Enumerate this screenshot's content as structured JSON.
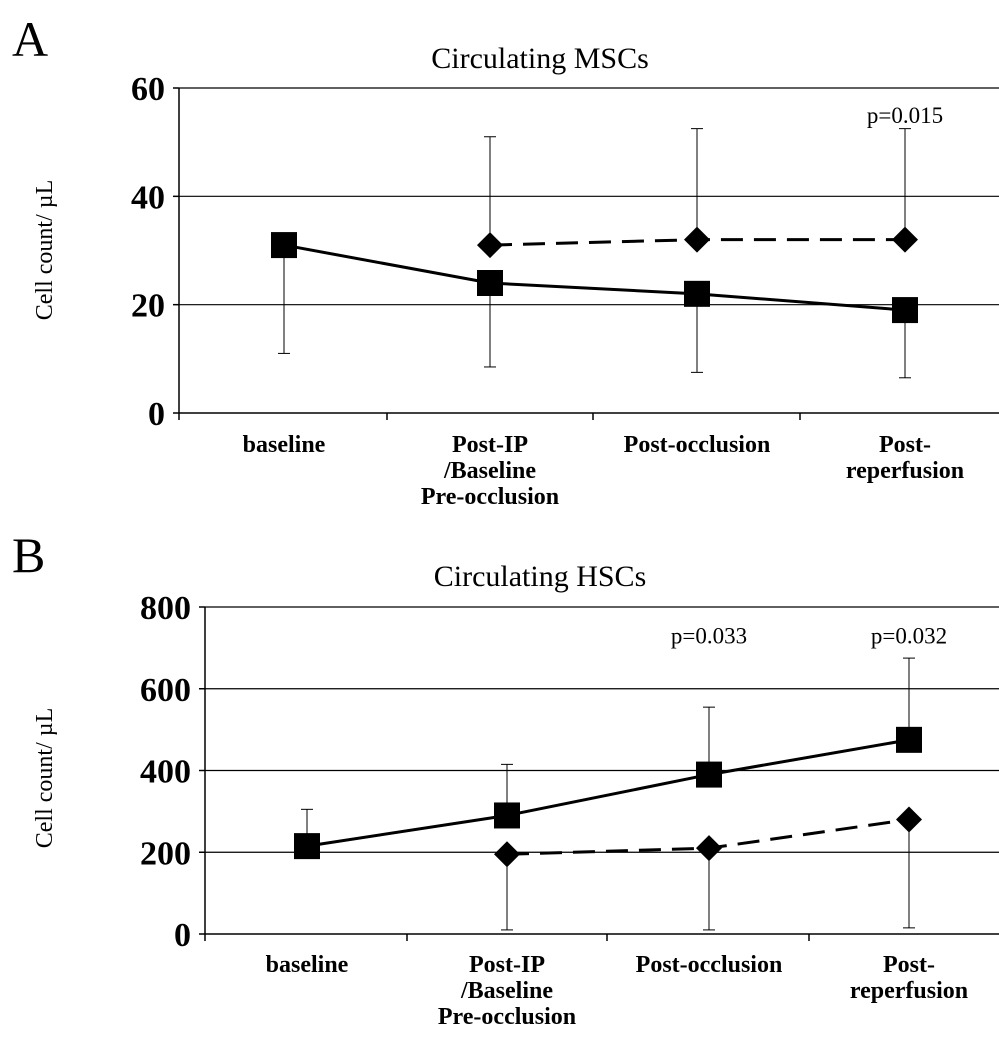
{
  "chart_data": [
    {
      "panel": "A",
      "type": "line",
      "title": "Circulating MSCs",
      "ylabel": "Cell count/ µL",
      "xlabel": "",
      "ylim": [
        0,
        60
      ],
      "yticks": [
        "0",
        "20",
        "40",
        "60"
      ],
      "categories": [
        [
          "baseline"
        ],
        [
          "Post-IP",
          "/Baseline",
          "Pre-occlusion"
        ],
        [
          "Post-occlusion"
        ],
        [
          "Post-",
          "reperfusion"
        ]
      ],
      "grid": true,
      "series": [
        {
          "marker": "square",
          "line": "solid",
          "values": [
            31,
            24,
            22,
            19
          ],
          "errors": [
            [
              11,
              31
            ],
            [
              8.5,
              24
            ],
            [
              7.5,
              22
            ],
            [
              6.5,
              19
            ]
          ]
        },
        {
          "marker": "diamond",
          "line": "dashed",
          "values": [
            null,
            31,
            32,
            32
          ],
          "errors": [
            null,
            [
              31,
              51
            ],
            [
              32,
              52.5
            ],
            [
              32,
              52.5
            ]
          ]
        }
      ],
      "annotations": [
        {
          "category_index": 3,
          "value": 55,
          "text": "p=0.015"
        }
      ]
    },
    {
      "panel": "B",
      "type": "line",
      "title": "Circulating HSCs",
      "ylabel": "Cell count/ µL",
      "xlabel": "",
      "ylim": [
        0,
        800
      ],
      "yticks": [
        "0",
        "200",
        "400",
        "600",
        "800"
      ],
      "categories": [
        [
          "baseline"
        ],
        [
          "Post-IP",
          "/Baseline",
          "Pre-occlusion"
        ],
        [
          "Post-occlusion"
        ],
        [
          "Post-",
          "reperfusion"
        ]
      ],
      "grid": true,
      "series": [
        {
          "marker": "square",
          "line": "solid",
          "values": [
            215,
            290,
            390,
            475
          ],
          "errors": [
            [
              215,
              305
            ],
            [
              290,
              415
            ],
            [
              390,
              555
            ],
            [
              475,
              675
            ]
          ]
        },
        {
          "marker": "diamond",
          "line": "dashed",
          "values": [
            null,
            195,
            210,
            280
          ],
          "errors": [
            null,
            [
              10,
              195
            ],
            [
              10,
              210
            ],
            [
              15,
              280
            ]
          ]
        }
      ],
      "annotations": [
        {
          "category_index": 2,
          "value": 730,
          "text": "p=0.033"
        },
        {
          "category_index": 3,
          "value": 730,
          "text": "p=0.032"
        }
      ]
    }
  ]
}
